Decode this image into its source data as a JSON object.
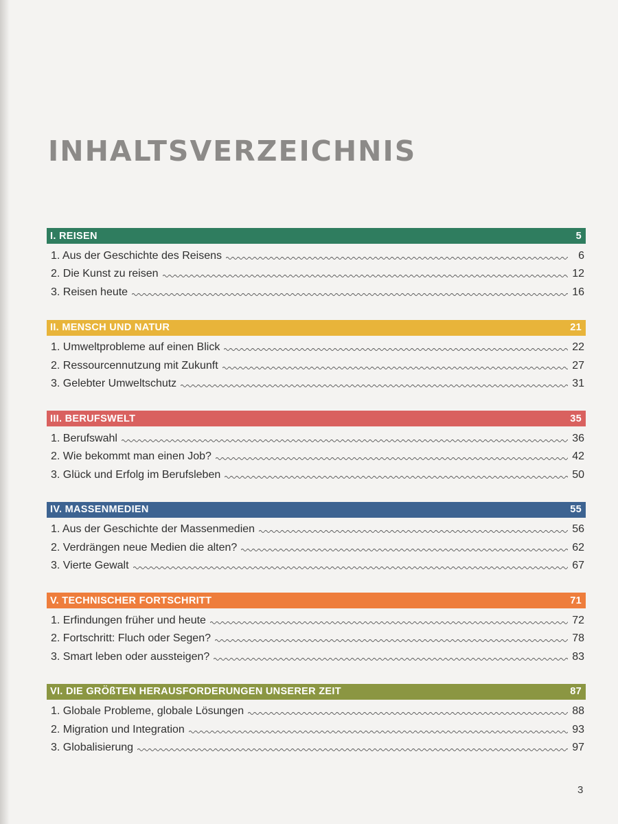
{
  "title": "INHALTSVERZEICHNIS",
  "page_number": "3",
  "colors": {
    "s1": "#2f7d5f",
    "s2": "#e8b43a",
    "s3": "#d9615f",
    "s4": "#3d6391",
    "s5": "#ee7d3c",
    "s6": "#8b9642"
  },
  "sections": [
    {
      "heading": "I. REISEN",
      "page": "5",
      "entries": [
        {
          "title": "1. Aus der Geschichte des Reisens",
          "page": "6"
        },
        {
          "title": "2. Die Kunst zu reisen",
          "page": "12"
        },
        {
          "title": "3. Reisen heute",
          "page": "16"
        }
      ]
    },
    {
      "heading": "II. MENSCH UND NATUR",
      "page": "21",
      "entries": [
        {
          "title": "1. Umweltprobleme auf einen Blick",
          "page": "22"
        },
        {
          "title": "2. Ressourcennutzung mit Zukunft",
          "page": "27"
        },
        {
          "title": "3. Gelebter Umweltschutz",
          "page": "31"
        }
      ]
    },
    {
      "heading": "III. BERUFSWELT",
      "page": "35",
      "entries": [
        {
          "title": "1. Berufswahl",
          "page": "36"
        },
        {
          "title": "2. Wie bekommt man einen Job?",
          "page": "42"
        },
        {
          "title": "3. Glück und Erfolg im Berufsleben",
          "page": "50"
        }
      ]
    },
    {
      "heading": "IV. MASSENMEDIEN",
      "page": "55",
      "entries": [
        {
          "title": "1. Aus der Geschichte der Massenmedien",
          "page": "56"
        },
        {
          "title": "2. Verdrängen neue Medien die alten?",
          "page": "62"
        },
        {
          "title": "3. Vierte Gewalt",
          "page": "67"
        }
      ]
    },
    {
      "heading": "V. TECHNISCHER FORTSCHRITT",
      "page": "71",
      "entries": [
        {
          "title": "1. Erfindungen früher und heute",
          "page": "72"
        },
        {
          "title": "2. Fortschritt: Fluch oder Segen?",
          "page": "78"
        },
        {
          "title": "3. Smart leben oder aussteigen?",
          "page": "83"
        }
      ]
    },
    {
      "heading": "VI. DIE GRÖßTEN HERAUSFORDERUNGEN UNSERER ZEIT",
      "page": "87",
      "entries": [
        {
          "title": "1. Globale Probleme, globale Lösungen",
          "page": "88"
        },
        {
          "title": "2. Migration und Integration",
          "page": "93"
        },
        {
          "title": "3. Globalisierung",
          "page": "97"
        }
      ]
    }
  ]
}
